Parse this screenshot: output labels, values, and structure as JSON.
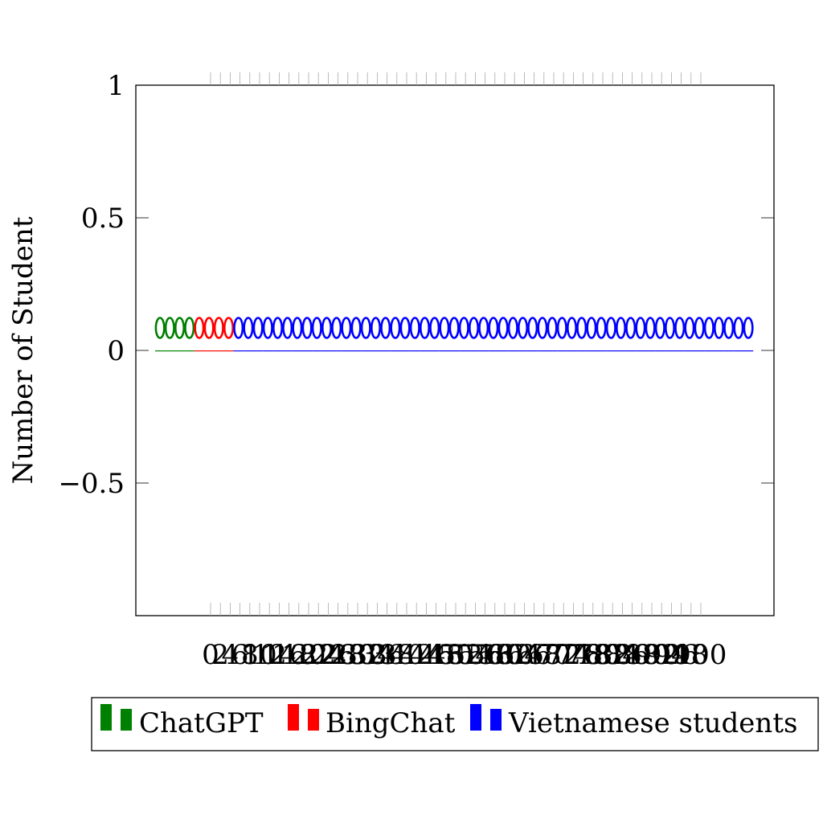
{
  "chart_data": {
    "type": "bar",
    "ylabel": "Number of Student",
    "xlabel": "",
    "title": "",
    "ylim": [
      -1,
      1
    ],
    "y_ticks": [
      "1",
      "0.5",
      "0",
      "−0.5"
    ],
    "x_ticks": [
      "0",
      "2",
      "4",
      "6",
      "8",
      "10",
      "12",
      "14",
      "16",
      "18",
      "20",
      "22",
      "24",
      "26",
      "28",
      "30",
      "32",
      "34",
      "36",
      "38",
      "40",
      "42",
      "44",
      "46",
      "48",
      "50",
      "52",
      "54",
      "56",
      "58",
      "60",
      "62",
      "64",
      "66",
      "68",
      "70",
      "72",
      "74",
      "76",
      "78",
      "80",
      "82",
      "84",
      "86",
      "88",
      "90",
      "92",
      "94",
      "96",
      "98",
      "100"
    ],
    "grid": false,
    "legend_position": "bottom",
    "series": [
      {
        "name": "ChatGPT",
        "color": "#008000",
        "values": [
          0,
          0,
          0,
          0
        ],
        "labels": [
          "0",
          "0",
          "0",
          "0"
        ]
      },
      {
        "name": "BingChat",
        "color": "#ff0000",
        "values": [
          0,
          0,
          0,
          0
        ],
        "labels": [
          "0",
          "0",
          "0",
          "0"
        ]
      },
      {
        "name": "Vietnamese students",
        "color": "#0000ff",
        "values": [
          0,
          0,
          0,
          0,
          0,
          0,
          0,
          0,
          0,
          0,
          0,
          0,
          0,
          0,
          0,
          0,
          0,
          0,
          0,
          0,
          0,
          0,
          0,
          0,
          0,
          0,
          0,
          0,
          0,
          0,
          0,
          0,
          0,
          0,
          0,
          0,
          0,
          0,
          0,
          0,
          0,
          0,
          0,
          0,
          0,
          0,
          0,
          0,
          0,
          0,
          0,
          0,
          0
        ],
        "labels": [
          "0",
          "0",
          "0",
          "0",
          "0",
          "0",
          "0",
          "0",
          "0",
          "0",
          "0",
          "0",
          "0",
          "0",
          "0",
          "0",
          "0",
          "0",
          "0",
          "0",
          "0",
          "0",
          "0",
          "0",
          "0",
          "0",
          "0",
          "0",
          "0",
          "0",
          "0",
          "0",
          "0",
          "0",
          "0",
          "0",
          "0",
          "0",
          "0",
          "0",
          "0",
          "0",
          "0",
          "0",
          "0",
          "0",
          "0",
          "0",
          "0",
          "0",
          "0",
          "0",
          "0"
        ]
      }
    ]
  }
}
